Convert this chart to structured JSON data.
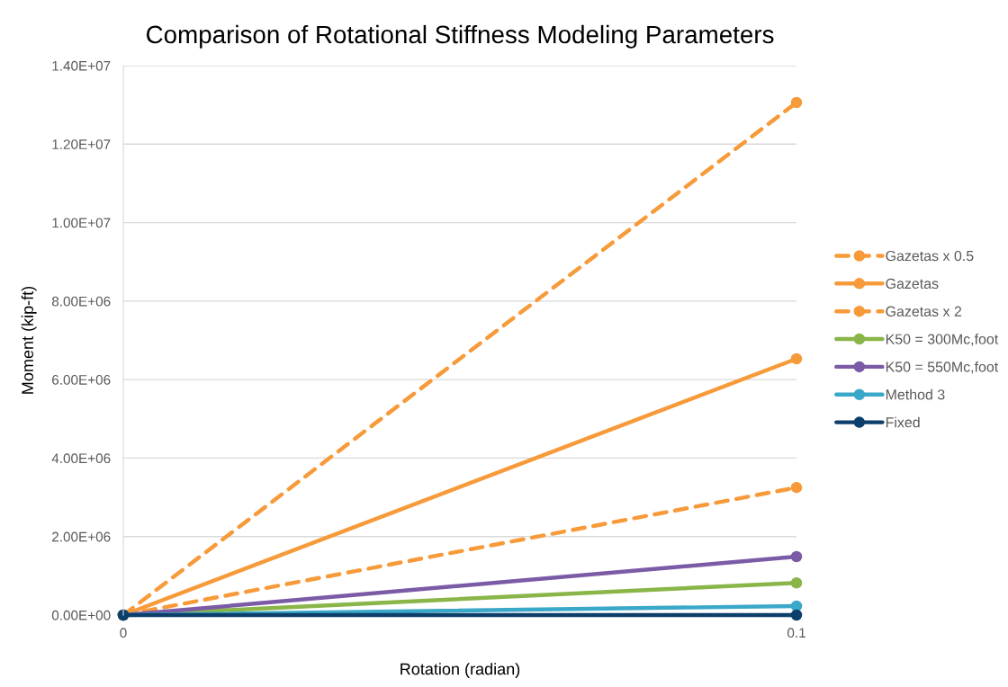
{
  "chart_data": {
    "type": "line",
    "title": "Comparison of Rotational Stiffness Modeling Parameters",
    "xlabel": "Rotation (radian)",
    "ylabel": "Moment (kip-ft)",
    "x": [
      0,
      0.1
    ],
    "xlim": [
      0,
      0.1
    ],
    "xticks": [
      0,
      0.1
    ],
    "ylim": [
      0,
      14000000
    ],
    "yticks": [
      {
        "value": 0,
        "label": "0.00E+00"
      },
      {
        "value": 2000000,
        "label": "2.00E+06"
      },
      {
        "value": 4000000,
        "label": "4.00E+06"
      },
      {
        "value": 6000000,
        "label": "6.00E+06"
      },
      {
        "value": 8000000,
        "label": "8.00E+06"
      },
      {
        "value": 10000000,
        "label": "1.00E+07"
      },
      {
        "value": 12000000,
        "label": "1.20E+07"
      },
      {
        "value": 14000000,
        "label": "1.40E+07"
      }
    ],
    "grid": "y",
    "legend": "right",
    "marker": "circle",
    "series": [
      {
        "name": "Gazetas x 0.5",
        "color": "#f79a3a",
        "values": [
          0,
          3250000
        ],
        "line_style": "dashed"
      },
      {
        "name": "Gazetas",
        "color": "#f79a3a",
        "values": [
          0,
          6530000
        ]
      },
      {
        "name": "Gazetas x 2",
        "color": "#f79a3a",
        "values": [
          0,
          13060000
        ],
        "line_style": "dashed"
      },
      {
        "name": "K50 = 300Mc,foot",
        "color": "#8ab548",
        "values": [
          0,
          820000
        ]
      },
      {
        "name": "K50 = 550Mc,foot",
        "color": "#7b5ba6",
        "values": [
          0,
          1490000
        ]
      },
      {
        "name": "Method 3",
        "color": "#3aa8c9",
        "values": [
          0,
          230000
        ]
      },
      {
        "name": "Fixed",
        "color": "#0d3f6b",
        "values": [
          0,
          0
        ]
      }
    ]
  }
}
